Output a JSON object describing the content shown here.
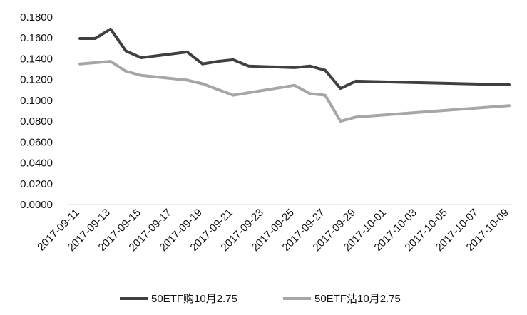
{
  "chart_data": {
    "type": "line",
    "title": "",
    "xlabel": "",
    "ylabel": "",
    "ylim": [
      0,
      0.18
    ],
    "y_ticks": [
      "0.0000",
      "0.0200",
      "0.0400",
      "0.0600",
      "0.0800",
      "0.1000",
      "0.1200",
      "0.1400",
      "0.1600",
      "0.1800"
    ],
    "x_tick_labels": [
      "2017-09-11",
      "2017-09-13",
      "2017-09-15",
      "2017-09-17",
      "2017-09-19",
      "2017-09-21",
      "2017-09-23",
      "2017-09-25",
      "2017-09-27",
      "2017-09-29",
      "2017-10-01",
      "2017-10-03",
      "2017-10-05",
      "2017-10-07",
      "2017-10-09"
    ],
    "grid": false,
    "legend_position": "bottom",
    "series": [
      {
        "name": "50ETF购10月2.75",
        "color": "#404040",
        "points": [
          {
            "x": "2017-09-11",
            "y": 0.1595
          },
          {
            "x": "2017-09-12",
            "y": 0.1595
          },
          {
            "x": "2017-09-13",
            "y": 0.1685
          },
          {
            "x": "2017-09-14",
            "y": 0.1475
          },
          {
            "x": "2017-09-15",
            "y": 0.141
          },
          {
            "x": "2017-09-18",
            "y": 0.1465
          },
          {
            "x": "2017-09-19",
            "y": 0.135
          },
          {
            "x": "2017-09-20",
            "y": 0.1375
          },
          {
            "x": "2017-09-21",
            "y": 0.139
          },
          {
            "x": "2017-09-22",
            "y": 0.133
          },
          {
            "x": "2017-09-25",
            "y": 0.1315
          },
          {
            "x": "2017-09-26",
            "y": 0.133
          },
          {
            "x": "2017-09-27",
            "y": 0.129
          },
          {
            "x": "2017-09-28",
            "y": 0.1115
          },
          {
            "x": "2017-09-29",
            "y": 0.1185
          },
          {
            "x": "2017-10-09",
            "y": 0.115
          }
        ]
      },
      {
        "name": "50ETF沽10月2.75",
        "color": "#a6a6a6",
        "points": [
          {
            "x": "2017-09-11",
            "y": 0.135
          },
          {
            "x": "2017-09-13",
            "y": 0.1375
          },
          {
            "x": "2017-09-14",
            "y": 0.128
          },
          {
            "x": "2017-09-15",
            "y": 0.124
          },
          {
            "x": "2017-09-18",
            "y": 0.1195
          },
          {
            "x": "2017-09-19",
            "y": 0.116
          },
          {
            "x": "2017-09-21",
            "y": 0.105
          },
          {
            "x": "2017-09-25",
            "y": 0.1145
          },
          {
            "x": "2017-09-26",
            "y": 0.1065
          },
          {
            "x": "2017-09-27",
            "y": 0.105
          },
          {
            "x": "2017-09-28",
            "y": 0.08
          },
          {
            "x": "2017-09-29",
            "y": 0.084
          },
          {
            "x": "2017-10-09",
            "y": 0.095
          }
        ]
      }
    ]
  }
}
